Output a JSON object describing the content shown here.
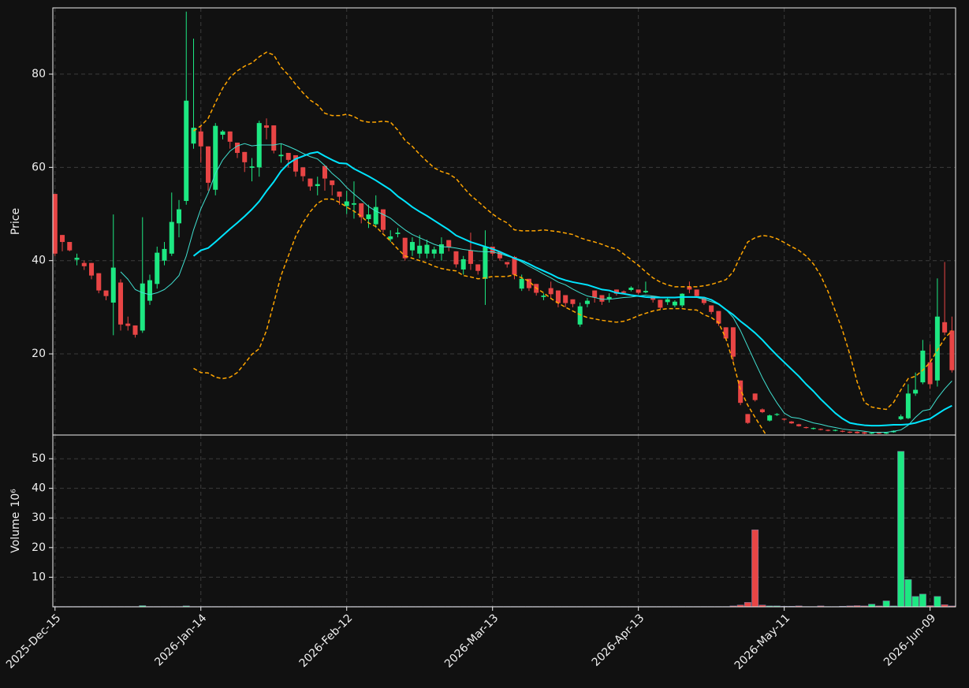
{
  "chart_data": {
    "type": "candlestick",
    "ylabel": "Price",
    "ylim": [
      2.6,
      94.2
    ],
    "yticks": [
      20,
      40,
      60,
      80
    ],
    "xlim": [
      -0.3,
      123.5
    ],
    "xticks": [
      {
        "value": 0,
        "label": "2025-Dec-15"
      },
      {
        "value": 20,
        "label": "2026-Jan-14"
      },
      {
        "value": 40,
        "label": "2026-Feb-12"
      },
      {
        "value": 60,
        "label": "2026-Mar-13"
      },
      {
        "value": 80,
        "label": "2026-Apr-13"
      },
      {
        "value": 100,
        "label": "2026-May-11"
      },
      {
        "value": 120,
        "label": "2026-Jun-09"
      }
    ],
    "grid": true,
    "up_color": "#1de882",
    "down_color": "#e84545",
    "open": [
      54.3,
      45.5,
      44,
      40.2,
      39.5,
      39.5,
      37.3,
      33.6,
      31,
      35.3,
      26.5,
      26.1,
      25,
      31.4,
      35,
      40,
      41.5,
      48,
      52.8,
      65.1,
      67.7,
      64.5,
      55.2,
      67,
      67.7,
      65.3,
      63.3,
      59.9,
      60,
      69,
      69,
      62.4,
      63.1,
      62.6,
      60,
      57.6,
      56,
      60.3,
      57.2,
      54.8,
      51.7,
      52,
      52.3,
      48.9,
      47.8,
      51,
      44.6,
      45.7,
      44.9,
      42.2,
      41.5,
      41.5,
      41.5,
      41.5,
      44.4,
      42,
      38.1,
      42.2,
      39.2,
      36.1,
      43,
      41.9,
      39.7,
      40.8,
      34,
      36.1,
      35,
      32.2,
      34.1,
      33.6,
      32.6,
      31.7,
      26.3,
      30.7,
      33.6,
      32.6,
      31.8,
      33.8,
      33.4,
      33.7,
      33.8,
      33.2,
      32.4,
      31.6,
      31.1,
      30.4,
      30.4,
      34.4,
      33.8,
      32.1,
      30.4,
      29.2,
      25.7,
      25.7,
      14.3,
      7.1,
      11.5,
      8.1,
      5.7,
      6.9,
      6.1,
      5.5,
      4.9,
      4.3,
      3.9,
      3.9,
      3.7,
      3.5,
      3.5,
      3.3,
      3.3,
      3.2,
      2.9,
      3.1,
      2.9,
      3.2,
      6,
      6.2,
      11.5,
      13.9,
      18.2,
      14.3,
      26.8,
      25
    ],
    "high": [
      54.3,
      45.5,
      44,
      41.5,
      40,
      39.5,
      37.3,
      33.6,
      49.9,
      36,
      28,
      26.1,
      49.3,
      37,
      43,
      44,
      54.6,
      53,
      93.4,
      87.6,
      69,
      64.5,
      69.5,
      68,
      67.7,
      65.3,
      63.3,
      62,
      70,
      70.5,
      69,
      65,
      63.1,
      62.6,
      60,
      57.6,
      58,
      60.3,
      57.2,
      54.8,
      55,
      57,
      52.3,
      52,
      54,
      51,
      46.5,
      47,
      44.9,
      45,
      45.5,
      44.5,
      43,
      45,
      44.4,
      42,
      41,
      46,
      39.2,
      46.5,
      43,
      41.9,
      39.7,
      41,
      37,
      36.1,
      35,
      33,
      35.5,
      33.6,
      32.6,
      31.7,
      31,
      32,
      33.6,
      32.6,
      33,
      33.8,
      33.6,
      34.5,
      33.8,
      35.5,
      32.4,
      31.6,
      32,
      31.5,
      33,
      35.5,
      33.8,
      32.1,
      30.4,
      29.2,
      25.7,
      25.7,
      14.3,
      7.1,
      11.5,
      8.3,
      7,
      7.3,
      6.2,
      5.6,
      5,
      4.4,
      4.2,
      4,
      3.8,
      3.8,
      3.6,
      3.4,
      3.4,
      3.3,
      3.2,
      3.2,
      3.2,
      3.6,
      7,
      13.5,
      16,
      23,
      22,
      36.2,
      39.7,
      28
    ],
    "low": [
      41,
      42,
      42,
      39,
      38,
      36,
      33,
      31.5,
      24,
      25,
      25,
      23.5,
      24.5,
      30.5,
      34,
      39,
      41,
      45,
      52,
      64,
      61,
      55,
      54,
      66,
      64,
      62,
      59,
      57,
      58,
      66,
      63,
      61,
      60,
      58,
      57,
      55,
      54,
      55,
      54,
      52,
      50,
      49,
      48,
      47,
      47,
      46,
      44,
      45,
      40,
      41,
      40.5,
      40.5,
      40.5,
      40,
      42,
      38.5,
      37,
      38,
      37,
      30.5,
      41,
      40,
      38.5,
      36,
      33.5,
      33.5,
      32.5,
      31.5,
      32,
      30,
      30,
      30,
      25.8,
      30,
      31,
      30.5,
      31,
      32.5,
      32.8,
      33.4,
      32.8,
      33,
      31,
      29.5,
      30.5,
      30,
      30,
      33,
      32,
      30.5,
      28.5,
      26,
      23,
      18.5,
      9,
      5,
      9.8,
      7.3,
      5.5,
      6.7,
      5.7,
      5,
      4.4,
      4,
      3.8,
      3.6,
      3.4,
      3.4,
      3.2,
      3,
      2.9,
      2.8,
      2.8,
      2.8,
      2.8,
      3.1,
      5.8,
      6,
      11,
      13.5,
      12.5,
      13,
      24,
      16
    ],
    "close": [
      41.5,
      44,
      42.2,
      40.6,
      38.8,
      36.8,
      33.6,
      32.4,
      38.5,
      26.3,
      26,
      24.1,
      35.1,
      35.8,
      41.7,
      42.5,
      48.3,
      51,
      74.3,
      68.5,
      64.5,
      56.7,
      68.9,
      67.7,
      65.5,
      63.1,
      61.1,
      60.2,
      69.5,
      68.5,
      63.6,
      62.7,
      61.6,
      59.1,
      58.1,
      55.9,
      56.4,
      57.6,
      56.2,
      53.7,
      52.7,
      52.3,
      49.3,
      49.9,
      51.5,
      46.6,
      45.2,
      46,
      40.5,
      44,
      43.2,
      43.4,
      42.4,
      43.5,
      42.9,
      39.2,
      40.3,
      39.3,
      37.8,
      43,
      41.5,
      40.5,
      39.2,
      37,
      36.1,
      34.1,
      33.1,
      32.5,
      32.8,
      30.9,
      30.9,
      30.7,
      30.2,
      31.4,
      32.1,
      31.2,
      32.2,
      32.9,
      33.1,
      34.2,
      33.1,
      33.5,
      31.6,
      29.9,
      31.7,
      31.2,
      32.9,
      33.8,
      32.4,
      30.9,
      29,
      26.5,
      23.3,
      19.4,
      9.5,
      5.2,
      10.1,
      7.5,
      6.8,
      7.1,
      5.9,
      5.1,
      4.5,
      4.1,
      4.1,
      3.7,
      3.5,
      3.7,
      3.3,
      3.1,
      3,
      2.9,
      3.1,
      2.9,
      3.1,
      3.5,
      6.6,
      11.5,
      12.3,
      20.7,
      13.5,
      28,
      24.6,
      16.5
    ],
    "lines": [
      {
        "color": "#40e0d0",
        "width": 1,
        "dash": false,
        "values": [
          null,
          null,
          null,
          null,
          null,
          null,
          null,
          null,
          null,
          37.6,
          36,
          33.8,
          33.1,
          32.7,
          33.1,
          33.8,
          35.1,
          36.8,
          41,
          46.6,
          51.1,
          54.5,
          58.7,
          61.6,
          63.5,
          64.6,
          65.1,
          64.6,
          64.8,
          64.8,
          64.8,
          65.1,
          64.5,
          63.8,
          63,
          62.3,
          61.8,
          60.4,
          58.7,
          57.4,
          55.7,
          54.3,
          53,
          51.6,
          50.6,
          49.9,
          49.1,
          47.8,
          46.6,
          45.6,
          44.9,
          44.2,
          43.5,
          43,
          42.9,
          42.7,
          42.4,
          42.2,
          42,
          41.9,
          41.9,
          41.5,
          41,
          40.5,
          39.7,
          38.8,
          38,
          37.1,
          36.3,
          35.4,
          34.8,
          33.9,
          33.1,
          32.4,
          32.1,
          31.7,
          31.7,
          31.9,
          32.1,
          32.2,
          32.4,
          32.6,
          32.4,
          32.2,
          32.1,
          32.1,
          32.2,
          32.2,
          32.1,
          31.7,
          31.2,
          30.6,
          29.5,
          27.8,
          25,
          21.6,
          18.2,
          14.9,
          12,
          9.5,
          7.3,
          6.4,
          6.2,
          5.7,
          5.2,
          4.9,
          4.5,
          4.2,
          3.9,
          3.7,
          3.6,
          3.4,
          3.2,
          3.2,
          3.2,
          3.4,
          3.7,
          4.7,
          6.4,
          7.8,
          8.1,
          10.5,
          12.5,
          14.2
        ]
      },
      {
        "color": "#00e5ff",
        "width": 2,
        "dash": false,
        "values": [
          null,
          null,
          null,
          null,
          null,
          null,
          null,
          null,
          null,
          null,
          null,
          null,
          null,
          null,
          null,
          null,
          null,
          null,
          null,
          41,
          42.2,
          42.7,
          44,
          45.4,
          46.8,
          48.1,
          49.5,
          51,
          52.7,
          54.9,
          56.9,
          59.2,
          60.8,
          61.8,
          62.4,
          63,
          63.3,
          62.4,
          61.6,
          60.9,
          60.8,
          59.7,
          58.9,
          58.1,
          57.2,
          56.2,
          55.2,
          53.8,
          52.7,
          51.5,
          50.5,
          49.6,
          48.6,
          47.6,
          46.6,
          45.4,
          44.7,
          44,
          43.5,
          43,
          42.5,
          41.9,
          41.2,
          40.5,
          40,
          39.3,
          38.5,
          37.8,
          37.1,
          36.3,
          35.8,
          35.4,
          35.1,
          34.8,
          34.3,
          33.8,
          33.6,
          33.1,
          32.9,
          32.6,
          32.4,
          32.2,
          32.1,
          32.1,
          32.1,
          32.1,
          32.2,
          32.2,
          32.2,
          32.1,
          31.6,
          30.7,
          29.5,
          28.4,
          27,
          25.8,
          24.5,
          23,
          21.3,
          19.7,
          18.2,
          16.7,
          15.2,
          13.5,
          12,
          10.3,
          8.8,
          7.3,
          6.1,
          5.2,
          4.9,
          4.7,
          4.6,
          4.6,
          4.7,
          4.8,
          4.8,
          4.9,
          5.2,
          5.7,
          6.1,
          7.1,
          8.1,
          8.9
        ]
      },
      {
        "color": "#ffa500",
        "width": 1.5,
        "dash": true,
        "values": [
          null,
          null,
          null,
          null,
          null,
          null,
          null,
          null,
          null,
          null,
          null,
          null,
          null,
          null,
          null,
          null,
          null,
          null,
          null,
          67.8,
          68.9,
          70.5,
          73.9,
          77,
          79.3,
          80.7,
          81.7,
          82.4,
          83.7,
          84.7,
          84.1,
          81.5,
          79.8,
          77.8,
          76,
          74.4,
          73.4,
          71.6,
          71.1,
          71.1,
          71.4,
          70.9,
          70,
          69.7,
          69.7,
          69.9,
          69.7,
          68,
          65.8,
          64.5,
          62.8,
          61.3,
          59.9,
          59.1,
          58.6,
          57.6,
          55.7,
          54,
          52.7,
          51.3,
          50,
          48.9,
          48.1,
          46.6,
          46.4,
          46.4,
          46.4,
          46.6,
          46.4,
          46.2,
          45.9,
          45.6,
          44.9,
          44.4,
          44,
          43.5,
          42.9,
          42.5,
          41.4,
          40.2,
          39,
          37.6,
          36.3,
          35.4,
          34.8,
          34.4,
          34.4,
          34.4,
          34.4,
          34.6,
          34.9,
          35.4,
          35.9,
          37.6,
          41,
          44,
          44.9,
          45.4,
          45.2,
          44.7,
          43.9,
          43,
          42.2,
          41,
          39.3,
          36.8,
          33.4,
          29.2,
          25,
          19.9,
          14,
          9.6,
          8.6,
          8.3,
          8.1,
          9.6,
          12.3,
          14.7,
          15.2,
          16.5,
          18.2,
          20.8,
          23.3,
          25
        ]
      },
      {
        "color": "#ffa500",
        "width": 1.5,
        "dash": true,
        "values": [
          null,
          null,
          null,
          null,
          null,
          null,
          null,
          null,
          null,
          null,
          null,
          null,
          null,
          null,
          null,
          null,
          null,
          null,
          null,
          16.9,
          16,
          15.9,
          15,
          14.7,
          15,
          16,
          17.9,
          19.9,
          21.1,
          25,
          30.9,
          36.8,
          41,
          45.2,
          48.1,
          50.5,
          52.3,
          53.2,
          53.2,
          52.5,
          51.5,
          50.6,
          49.5,
          48.1,
          47.3,
          45.7,
          44.2,
          42.5,
          41,
          40.5,
          40,
          39.5,
          38.8,
          38.3,
          38,
          37.8,
          36.8,
          36.5,
          36.1,
          36.3,
          36.6,
          36.6,
          36.6,
          37,
          36.3,
          35.6,
          34.1,
          33.1,
          31.9,
          30.9,
          30,
          29.2,
          28.4,
          27.8,
          27.5,
          27.2,
          27,
          26.8,
          27,
          27.5,
          28.2,
          28.7,
          29.2,
          29.5,
          29.7,
          29.7,
          29.7,
          29.5,
          29.4,
          28.4,
          27.8,
          26.7,
          23.3,
          18.2,
          12.3,
          9,
          6.4,
          3.9,
          1.4,
          null,
          null,
          null,
          null,
          null,
          null,
          null,
          null,
          null,
          null,
          null,
          null,
          null,
          null,
          null,
          null,
          null,
          null,
          null,
          null,
          null,
          null,
          null,
          null,
          null
        ]
      }
    ],
    "volume": {
      "ylabel": "Volume",
      "scale_label": "10⁶",
      "ylim": [
        0,
        58
      ],
      "yticks": [
        10,
        20,
        30,
        40,
        50
      ],
      "values": [
        0.1,
        0.1,
        0.1,
        0.1,
        0.1,
        0.1,
        0.1,
        0.1,
        0.1,
        0.1,
        0.1,
        0.1,
        0.4,
        0.1,
        0.1,
        0.1,
        0.1,
        0.1,
        0.3,
        0.1,
        0.1,
        0.1,
        0.1,
        0.1,
        0.1,
        0.1,
        0.1,
        0.1,
        0.1,
        0.1,
        0.1,
        0.1,
        0.1,
        0.1,
        0.1,
        0.1,
        0.1,
        0.1,
        0.1,
        0.1,
        0.1,
        0.1,
        0.1,
        0.1,
        0.1,
        0.1,
        0.1,
        0.1,
        0.1,
        0.1,
        0.1,
        0.1,
        0.1,
        0.1,
        0.1,
        0.1,
        0.1,
        0.1,
        0.1,
        0.1,
        0.1,
        0.1,
        0.1,
        0.1,
        0.1,
        0.1,
        0.1,
        0.1,
        0.1,
        0.1,
        0.1,
        0.1,
        0.1,
        0.1,
        0.1,
        0.1,
        0.1,
        0.1,
        0.1,
        0.1,
        0.1,
        0.1,
        0.1,
        0.1,
        0.1,
        0.1,
        0.1,
        0.1,
        0.1,
        0.1,
        0.1,
        0.1,
        0.1,
        0.3,
        0.6,
        1.5,
        26,
        0.6,
        0.3,
        0.3,
        0.2,
        0.2,
        0.3,
        0.1,
        0.1,
        0.3,
        0.1,
        0.1,
        0.2,
        0.3,
        0.4,
        0.3,
        0.9,
        0.3,
        2,
        0.3,
        52.5,
        9.2,
        3.5,
        4.3,
        0.4,
        3.5,
        0.7,
        0.3
      ]
    }
  }
}
